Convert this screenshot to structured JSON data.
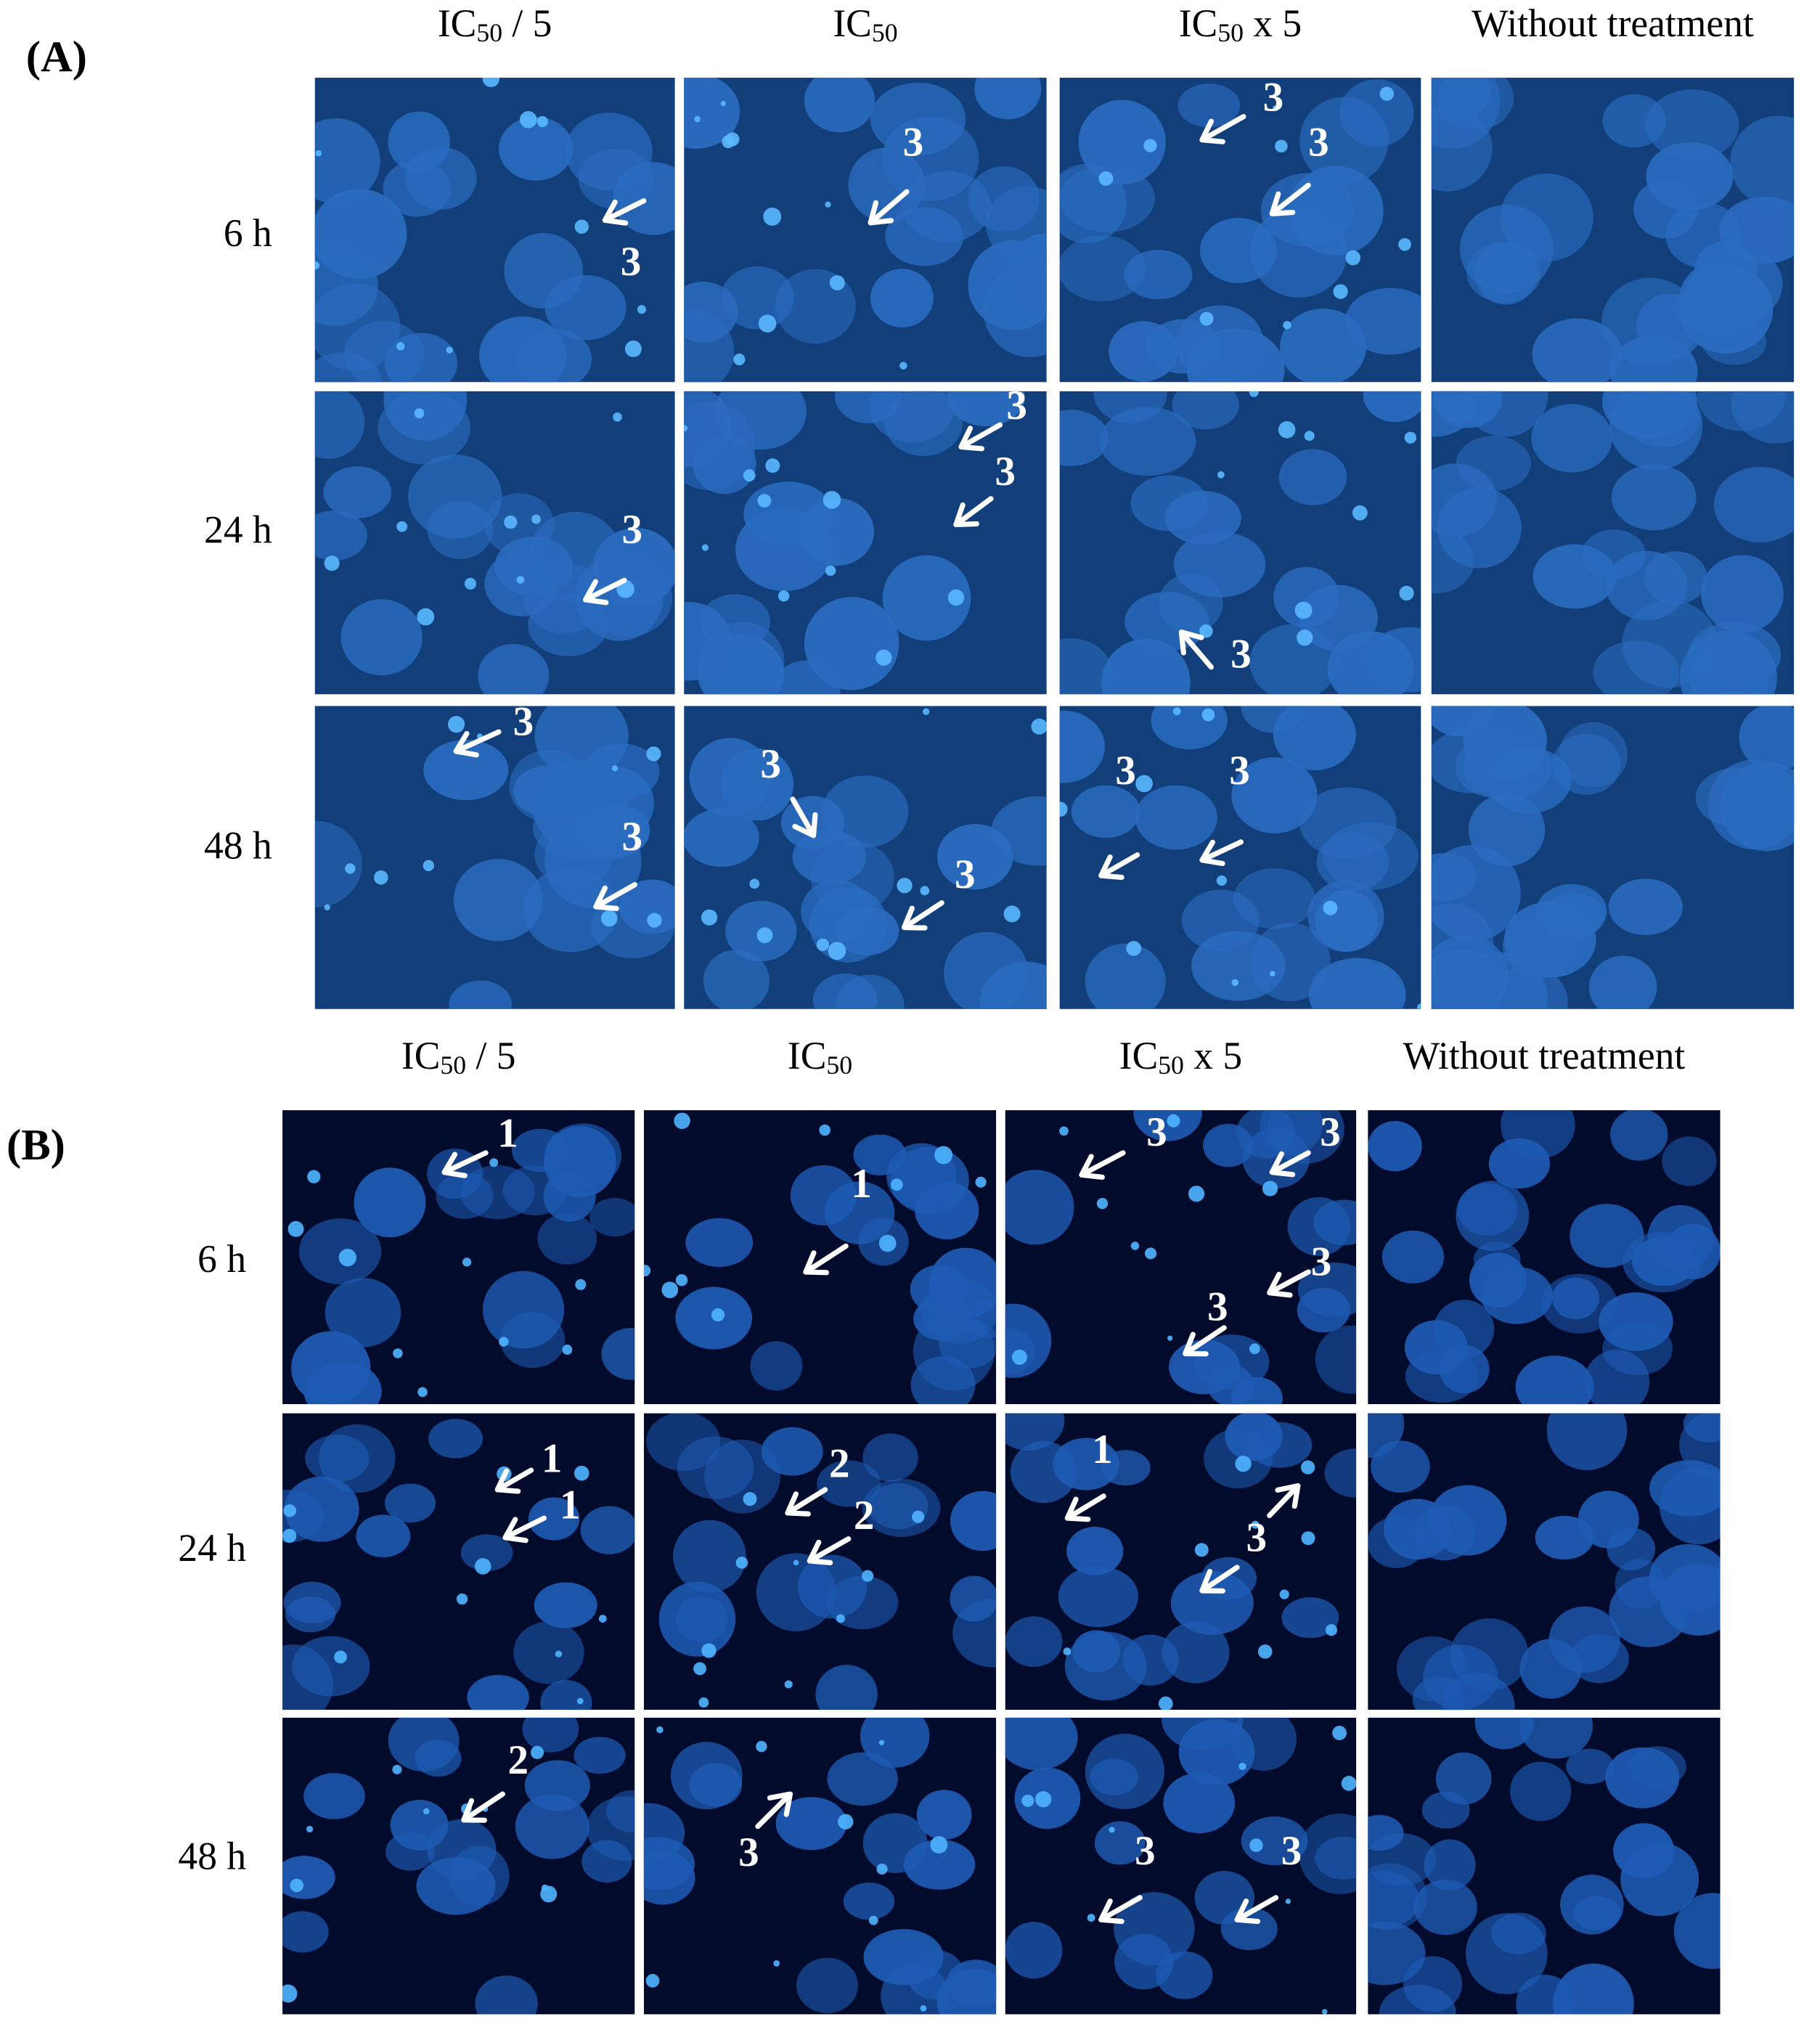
{
  "panels": [
    {
      "label": "(A)",
      "columns": [
        {
          "prefix": "IC",
          "sub": "50",
          "suffix": " / 5"
        },
        {
          "prefix": "IC",
          "sub": "50"
        },
        {
          "prefix": "IC",
          "sub": "50",
          "suffix": " x 5"
        },
        "Without treatment"
      ],
      "rows": [
        "6 h",
        "24 h",
        "48 h"
      ],
      "cells": [
        [
          [
            "3"
          ],
          [
            "3"
          ],
          [
            "3",
            "3"
          ],
          []
        ],
        [
          [
            "3"
          ],
          [
            "3",
            "3"
          ],
          [
            "3"
          ],
          []
        ],
        [
          [
            "3",
            "3"
          ],
          [
            "3",
            "3"
          ],
          [
            "3",
            "3"
          ],
          []
        ]
      ]
    },
    {
      "label": "(B)",
      "columns": [
        {
          "prefix": "IC",
          "sub": "50",
          "suffix": " / 5"
        },
        {
          "prefix": "IC",
          "sub": "50"
        },
        {
          "prefix": "IC",
          "sub": "50",
          "suffix": " x 5"
        },
        "Without treatment"
      ],
      "rows": [
        "6 h",
        "24 h",
        "48 h"
      ],
      "cells": [
        [
          [
            "1"
          ],
          [
            "1"
          ],
          [
            "3",
            "3",
            "3",
            "3"
          ],
          []
        ],
        [
          [
            "1",
            "1"
          ],
          [
            "2",
            "2"
          ],
          [
            "1",
            "3"
          ],
          []
        ],
        [
          [
            "2"
          ],
          [
            "3"
          ],
          [
            "3",
            "3"
          ],
          []
        ]
      ]
    }
  ]
}
